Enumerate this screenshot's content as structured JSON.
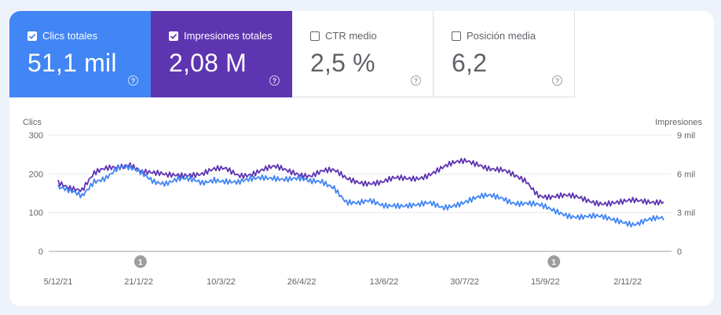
{
  "metrics": [
    {
      "label": "Clics totales",
      "value": "51,1 mil",
      "checked": true,
      "color": "#4285f4"
    },
    {
      "label": "Impresiones totales",
      "value": "2,08 M",
      "checked": true,
      "color": "#5e35b1"
    },
    {
      "label": "CTR medio",
      "value": "2,5 %",
      "checked": false,
      "color": "#ffffff"
    },
    {
      "label": "Posición media",
      "value": "6,2",
      "checked": false,
      "color": "#ffffff"
    }
  ],
  "chart_data": {
    "type": "line",
    "y_left_label": "Clics",
    "y_right_label": "Impresiones",
    "y_left_ticks": [
      "0",
      "100",
      "200",
      "300"
    ],
    "y_right_ticks": [
      "0",
      "3 mil",
      "6 mil",
      "9 mil"
    ],
    "ylim_left": [
      0,
      300
    ],
    "ylim_right": [
      0,
      9000
    ],
    "x_ticks": [
      "5/12/21",
      "21/1/22",
      "10/3/22",
      "26/4/22",
      "13/6/22",
      "30/7/22",
      "15/9/22",
      "2/11/22"
    ],
    "annotations": [
      {
        "label": "1",
        "date": "2022-01-22"
      },
      {
        "label": "1",
        "date": "2022-09-20"
      }
    ],
    "grid": true,
    "series": [
      {
        "name": "Clics",
        "color": "#4285f4",
        "axis": "left",
        "sampling": "weekly, starting 5/12/21",
        "values": [
          165,
          150,
          140,
          185,
          195,
          215,
          210,
          200,
          185,
          180,
          185,
          180,
          175,
          190,
          185,
          175,
          180,
          190,
          195,
          190,
          185,
          175,
          180,
          170,
          130,
          120,
          125,
          120,
          125,
          120,
          115,
          120,
          115,
          125,
          130,
          135,
          140,
          140,
          130,
          125,
          115,
          105,
          100,
          95,
          90,
          85,
          80,
          80,
          75,
          80,
          80
        ]
      },
      {
        "name": "Impresiones",
        "color": "#5e35b1",
        "axis": "right",
        "sampling": "weekly, starting 5/12/21",
        "values": [
          5400,
          5100,
          4800,
          5900,
          6300,
          6600,
          6900,
          6200,
          5900,
          5800,
          6000,
          6100,
          6000,
          6200,
          6300,
          6000,
          6100,
          6300,
          6400,
          6200,
          6100,
          6000,
          6200,
          6100,
          5600,
          5500,
          5400,
          5300,
          5500,
          5600,
          5800,
          6100,
          6400,
          6700,
          7000,
          6900,
          6500,
          6200,
          5700,
          5400,
          4500,
          4300,
          4200,
          4100,
          4000,
          3900,
          3800,
          3700,
          3800,
          3900,
          4000
        ]
      }
    ]
  }
}
